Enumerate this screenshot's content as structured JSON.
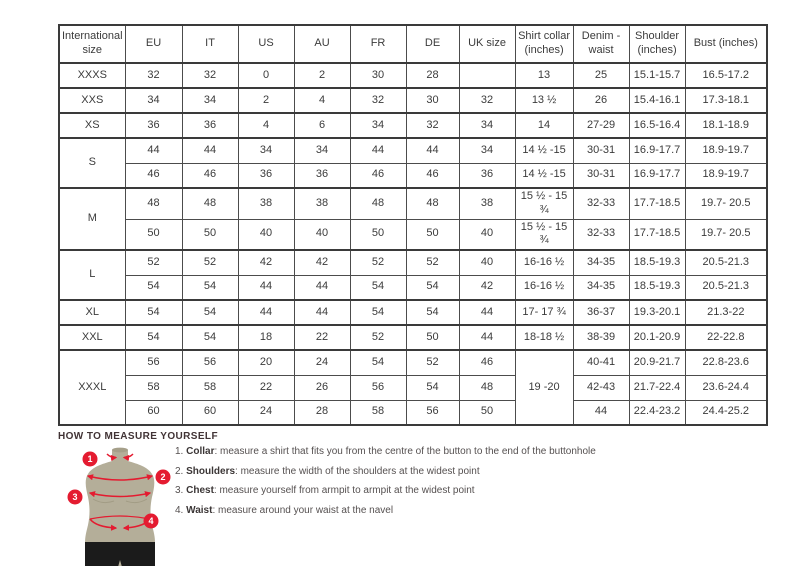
{
  "size_chart": {
    "headers": [
      "International size",
      "EU",
      "IT",
      "US",
      "AU",
      "FR",
      "DE",
      "UK size",
      "Shirt collar (inches)",
      "Denim - waist",
      "Shoulder (inches)",
      "Bust (inches)"
    ],
    "rows": [
      [
        "XXXS",
        "32",
        "32",
        "0",
        "2",
        "30",
        "28",
        "",
        "13",
        "25",
        "15.1-15.7",
        "16.5-17.2"
      ],
      [
        "XXS",
        "34",
        "34",
        "2",
        "4",
        "32",
        "30",
        "32",
        "13 ½",
        "26",
        "15.4-16.1",
        "17.3-18.1"
      ],
      [
        "XS",
        "36",
        "36",
        "4",
        "6",
        "34",
        "32",
        "34",
        "14",
        "27-29",
        "16.5-16.4",
        "18.1-18.9"
      ],
      [
        {
          "v": "S",
          "rs": 2
        },
        "44",
        "44",
        "34",
        "34",
        "44",
        "44",
        "34",
        "14 ½ -15",
        "30-31",
        "16.9-17.7",
        "18.9-19.7"
      ],
      [
        null,
        "46",
        "46",
        "36",
        "36",
        "46",
        "46",
        "36",
        "14 ½ -15",
        "30-31",
        "16.9-17.7",
        "18.9-19.7"
      ],
      [
        {
          "v": "M",
          "rs": 2
        },
        "48",
        "48",
        "38",
        "38",
        "48",
        "48",
        "38",
        "15 ½ - 15 ¾",
        "32-33",
        "17.7-18.5",
        "19.7- 20.5"
      ],
      [
        null,
        "50",
        "50",
        "40",
        "40",
        "50",
        "50",
        "40",
        "15 ½ - 15 ¾",
        "32-33",
        "17.7-18.5",
        "19.7- 20.5"
      ],
      [
        {
          "v": "L",
          "rs": 2
        },
        "52",
        "52",
        "42",
        "42",
        "52",
        "52",
        "40",
        "16-16 ½",
        "34-35",
        "18.5-19.3",
        "20.5-21.3"
      ],
      [
        null,
        "54",
        "54",
        "44",
        "44",
        "54",
        "54",
        "42",
        "16-16 ½",
        "34-35",
        "18.5-19.3",
        "20.5-21.3"
      ],
      [
        "XL",
        "54",
        "54",
        "44",
        "44",
        "54",
        "54",
        "44",
        "17- 17 ¾",
        "36-37",
        "19.3-20.1",
        "21.3-22"
      ],
      [
        "XXL",
        "54",
        "54",
        "18",
        "22",
        "52",
        "50",
        "44",
        "18-18 ½",
        "38-39",
        "20.1-20.9",
        "22-22.8"
      ],
      [
        {
          "v": "XXXL",
          "rs": 3
        },
        "56",
        "56",
        "20",
        "24",
        "54",
        "52",
        "46",
        {
          "v": "19 -20",
          "rs": 3
        },
        "40-41",
        "20.9-21.7",
        "22.8-23.6"
      ],
      [
        null,
        "58",
        "58",
        "22",
        "26",
        "56",
        "54",
        "48",
        null,
        "42-43",
        "21.7-22.4",
        "23.6-24.4"
      ],
      [
        null,
        "60",
        "60",
        "24",
        "28",
        "58",
        "56",
        "50",
        null,
        "44",
        "22.4-23.2",
        "24.4-25.2"
      ]
    ]
  },
  "measure_guide": {
    "title": "HOW TO MEASURE YOURSELF",
    "steps": [
      {
        "num": "1.",
        "label": "Collar",
        "rest": "measure a shirt that fits you from the centre of the button to the end of the buttonhole"
      },
      {
        "num": "2.",
        "label": "Shoulders",
        "rest": "measure the width of the shoulders at the widest point"
      },
      {
        "num": "3.",
        "label": "Chest",
        "rest": "measure yourself from armpit to armpit at the widest point"
      },
      {
        "num": "4.",
        "label": "Waist",
        "rest": "measure around your waist at the navel"
      }
    ],
    "figure": {
      "circle_labels": [
        "1",
        "2",
        "3",
        "4"
      ]
    }
  },
  "colors": {
    "accent_red": "#e41b30",
    "mannequin_body": "#b4ae99",
    "mannequin_shorts": "#1b1b1b",
    "table_border": "#3a3a3a",
    "text": "#3b3b3b",
    "heading": "#413335"
  }
}
